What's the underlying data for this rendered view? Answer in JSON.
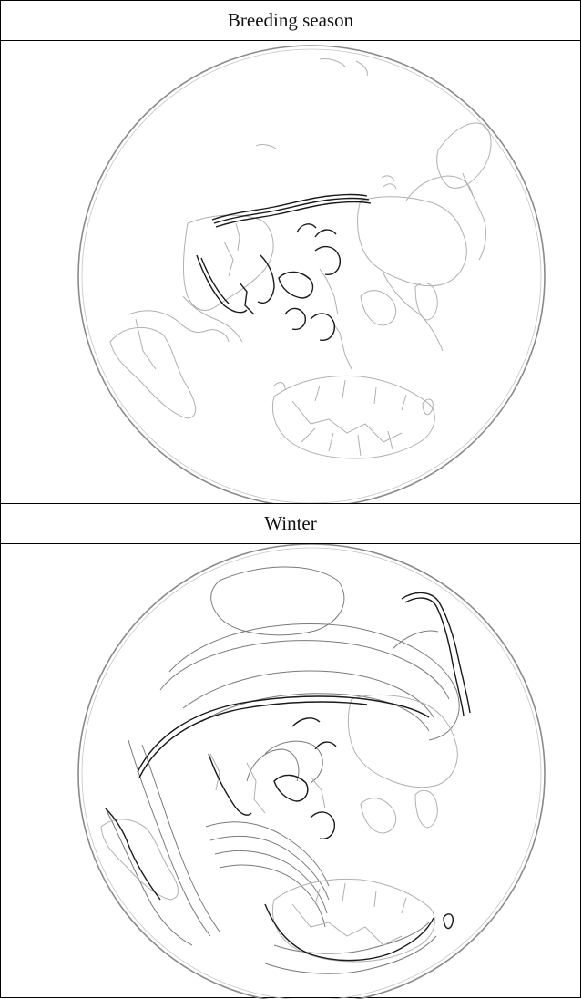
{
  "panels": [
    {
      "id": "breeding",
      "title": "Breeding season",
      "map": "polar-projection-breeding-range"
    },
    {
      "id": "winter",
      "title": "Winter",
      "map": "polar-projection-winter-range"
    }
  ],
  "colors": {
    "globe_outline": "#8a8a8a",
    "land_outline": "#b0b0b0",
    "range_outline": "#000000",
    "winter_range_lines": "#6e6e6e"
  }
}
